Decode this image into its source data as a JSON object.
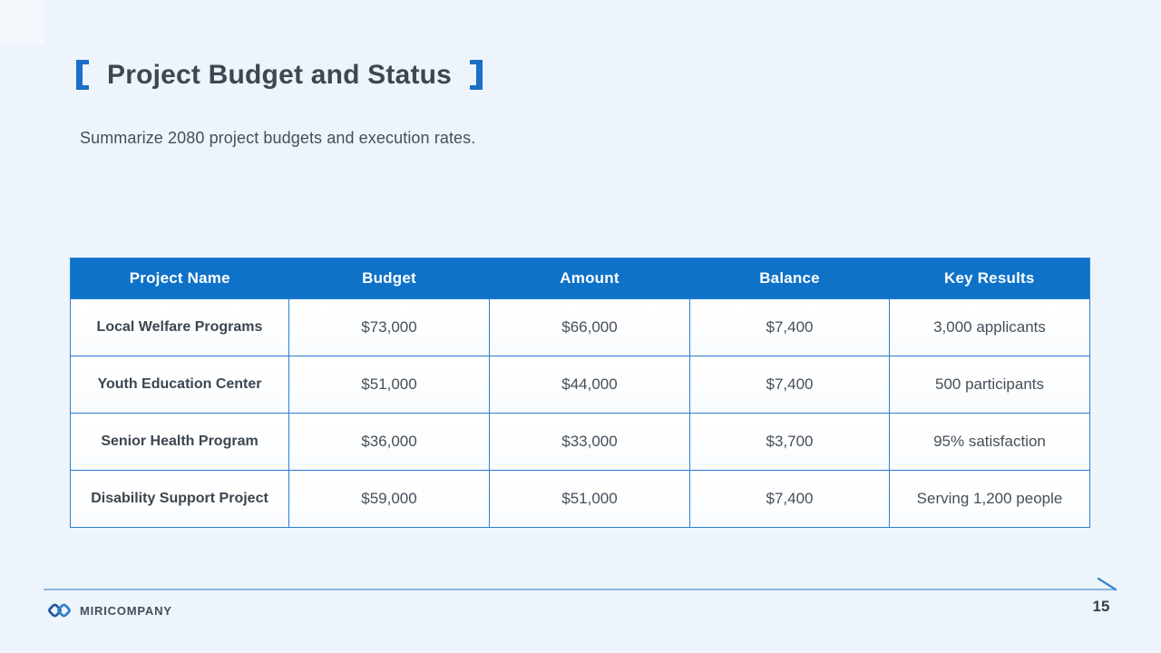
{
  "slide": {
    "title": "Project Budget and Status",
    "subtitle": "Summarize 2080 project budgets and execution rates.",
    "company_name": "MIRICOMPANY",
    "page_number": "15"
  },
  "table": {
    "headers": [
      "Project Name",
      "Budget",
      "Amount",
      "Balance",
      "Key Results"
    ],
    "rows": [
      [
        "Local Welfare Programs",
        "$73,000",
        "$66,000",
        "$7,400",
        "3,000 applicants"
      ],
      [
        "Youth Education Center",
        "$51,000",
        "$44,000",
        "$7,400",
        "500 participants"
      ],
      [
        "Senior Health Program",
        "$36,000",
        "$33,000",
        "$3,700",
        "95% satisfaction"
      ],
      [
        "Disability Support Project",
        "$59,000",
        "$51,000",
        "$7,400",
        "Serving 1,200 people"
      ]
    ]
  },
  "icons": {
    "logo": "chain-links-icon",
    "footer_arrow": "line-end-tick-icon",
    "brackets": "title-bracket-icons"
  },
  "colors": {
    "background": "#eef4fb",
    "header_bg": "#0e72c8",
    "border": "#2b7fd0",
    "accent": "#1a6fc6",
    "title_text": "#3d4751",
    "body_text": "#454f59",
    "footer_line": "#8cb7e0",
    "tick": "#3f86d2",
    "logo_dark": "#27589f",
    "logo_light": "#2e7fd0"
  }
}
